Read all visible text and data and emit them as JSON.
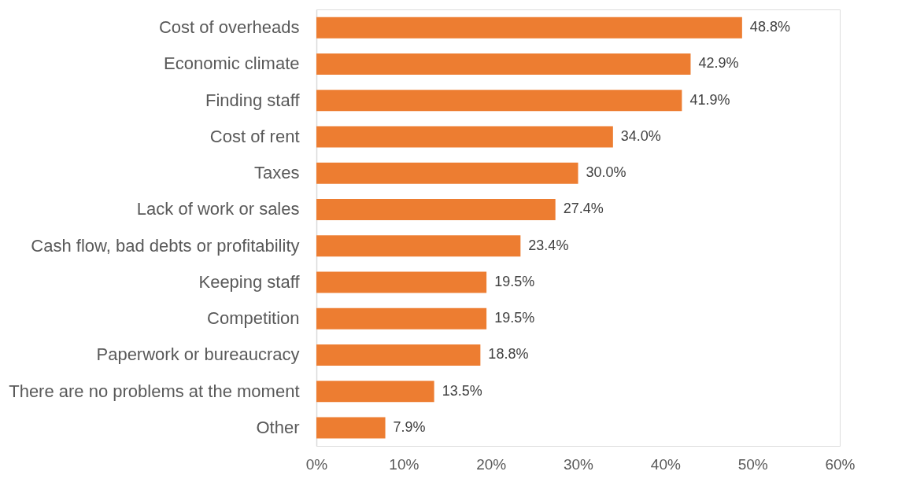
{
  "chart_data": {
    "type": "bar",
    "orientation": "horizontal",
    "categories": [
      "Cost of overheads",
      "Economic climate",
      "Finding staff",
      "Cost of rent",
      "Taxes",
      "Lack of work or sales",
      "Cash flow, bad debts or profitability",
      "Keeping staff",
      "Competition",
      "Paperwork or bureaucracy",
      "There are no problems at the moment",
      "Other"
    ],
    "values": [
      48.8,
      42.9,
      41.9,
      34.0,
      30.0,
      27.4,
      23.4,
      19.5,
      19.5,
      18.8,
      13.5,
      7.9
    ],
    "value_labels": [
      "48.8%",
      "42.9%",
      "41.9%",
      "34.0%",
      "30.0%",
      "27.4%",
      "23.4%",
      "19.5%",
      "19.5%",
      "18.8%",
      "13.5%",
      "7.9%"
    ],
    "color": "#ed7d31",
    "xlim": [
      0,
      60
    ],
    "xticks": [
      {
        "value": 0,
        "label": "0%"
      },
      {
        "value": 10,
        "label": "10%"
      },
      {
        "value": 20,
        "label": "20%"
      },
      {
        "value": 30,
        "label": "30%"
      },
      {
        "value": 40,
        "label": "40%"
      },
      {
        "value": 50,
        "label": "50%"
      },
      {
        "value": 60,
        "label": "60%"
      }
    ],
    "grid": false
  }
}
